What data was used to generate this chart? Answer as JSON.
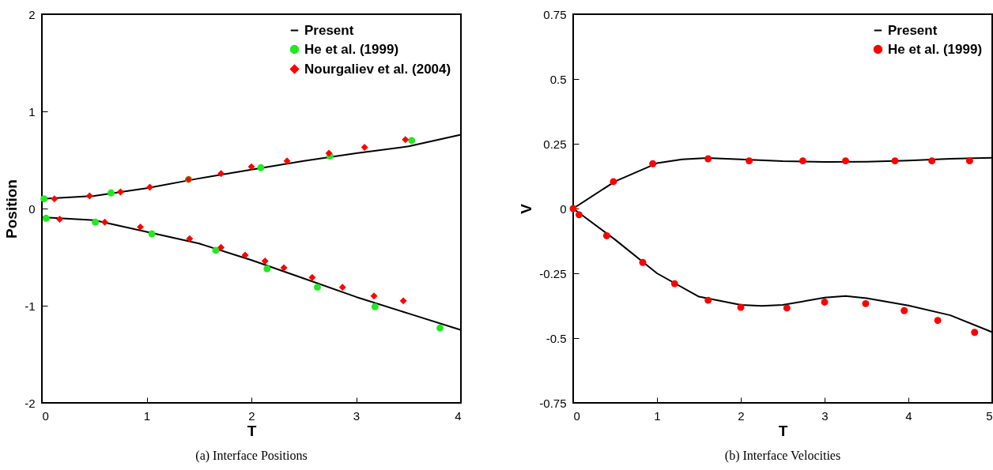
{
  "chart_data": [
    {
      "type": "line",
      "title": "(a) Interface Positions",
      "xlabel": "T",
      "ylabel": "Position",
      "xlim": [
        0,
        4
      ],
      "xticks": [
        0,
        1,
        2,
        3,
        4
      ],
      "ylim": [
        -2,
        2
      ],
      "yticks": [
        -2,
        -1,
        0,
        1,
        2
      ],
      "grid": false,
      "legend": "top right",
      "series": [
        {
          "name": "Present",
          "type": "line",
          "color": "#000000",
          "marker": "none",
          "line_style": "solid",
          "x": [
            0,
            0.5,
            1,
            1.5,
            2,
            2.5,
            3,
            3.5,
            4
          ],
          "values": [
            0.1,
            0.13,
            0.21,
            0.31,
            0.4,
            0.49,
            0.57,
            0.64,
            0.76
          ]
        },
        {
          "type": "line",
          "color": "#000000",
          "marker": "none",
          "line_style": "solid",
          "x": [
            0,
            0.5,
            1,
            1.5,
            2,
            2.5,
            3,
            3.5,
            4
          ],
          "values": [
            -0.09,
            -0.12,
            -0.24,
            -0.36,
            -0.53,
            -0.72,
            -0.91,
            -1.08,
            -1.25
          ]
        },
        {
          "name": "He et al. (1999)",
          "type": "scatter",
          "color": "#22e822",
          "marker": "circle",
          "x": [
            0.02,
            0.66,
            1.4,
            2.09,
            2.75,
            3.53,
            0.04,
            0.51,
            1.05,
            1.66,
            2.15,
            2.63,
            3.18,
            3.8
          ],
          "values": [
            0.1,
            0.16,
            0.3,
            0.42,
            0.54,
            0.7,
            -0.1,
            -0.14,
            -0.26,
            -0.43,
            -0.62,
            -0.81,
            -1.01,
            -1.23
          ]
        },
        {
          "name": "Nourgaliev et al. (2004)",
          "type": "scatter",
          "color": "#ff0000",
          "marker": "diamond",
          "x": [
            0.12,
            0.455,
            0.75,
            1.03,
            1.4,
            1.71,
            2.0,
            2.34,
            2.74,
            3.08,
            3.47,
            0.17,
            0.6,
            0.94,
            1.41,
            1.71,
            1.94,
            2.13,
            2.31,
            2.58,
            2.87,
            3.17,
            3.45
          ],
          "values": [
            0.1,
            0.13,
            0.17,
            0.22,
            0.3,
            0.36,
            0.43,
            0.49,
            0.57,
            0.63,
            0.71,
            -0.11,
            -0.14,
            -0.19,
            -0.31,
            -0.4,
            -0.48,
            -0.54,
            -0.61,
            -0.71,
            -0.81,
            -0.9,
            -0.95
          ]
        }
      ]
    },
    {
      "type": "line",
      "title": "(b) Interface Velocities",
      "xlabel": "T",
      "ylabel": "V",
      "xlim": [
        0,
        5
      ],
      "xticks": [
        0,
        1,
        2,
        3,
        4,
        5
      ],
      "ylim": [
        -0.75,
        0.75
      ],
      "yticks": [
        -0.75,
        -0.5,
        -0.25,
        0,
        0.25,
        0.5,
        0.75
      ],
      "grid": false,
      "legend": "top right",
      "series": [
        {
          "name": "Present",
          "type": "line",
          "color": "#000000",
          "marker": "none",
          "line_style": "solid",
          "x": [
            0,
            0.5,
            1,
            1.3,
            1.6,
            2,
            2.5,
            3,
            3.5,
            4,
            4.5,
            5
          ],
          "values": [
            0,
            0.105,
            0.175,
            0.19,
            0.195,
            0.19,
            0.183,
            0.18,
            0.181,
            0.185,
            0.192,
            0.196
          ]
        },
        {
          "type": "line",
          "color": "#000000",
          "marker": "none",
          "line_style": "solid",
          "x": [
            0,
            0.5,
            1,
            1.5,
            2,
            2.25,
            2.5,
            3,
            3.25,
            3.5,
            4,
            4.5,
            5
          ],
          "values": [
            0,
            -0.12,
            -0.25,
            -0.34,
            -0.372,
            -0.376,
            -0.372,
            -0.344,
            -0.338,
            -0.346,
            -0.374,
            -0.412,
            -0.477
          ]
        },
        {
          "name": "He et al. (1999)",
          "type": "scatter",
          "color": "#ff0000",
          "marker": "circle",
          "x": [
            0,
            0.48,
            0.95,
            1.61,
            2.1,
            2.74,
            3.25,
            3.84,
            4.28,
            4.73,
            0.07,
            0.4,
            0.83,
            1.21,
            1.61,
            2.0,
            2.55,
            3.0,
            3.49,
            3.95,
            4.35,
            4.79
          ],
          "values": [
            0,
            0.104,
            0.173,
            0.192,
            0.184,
            0.184,
            0.184,
            0.184,
            0.184,
            0.184,
            -0.024,
            -0.105,
            -0.208,
            -0.29,
            -0.354,
            -0.381,
            -0.384,
            -0.361,
            -0.367,
            -0.394,
            -0.432,
            -0.478
          ]
        }
      ]
    }
  ]
}
